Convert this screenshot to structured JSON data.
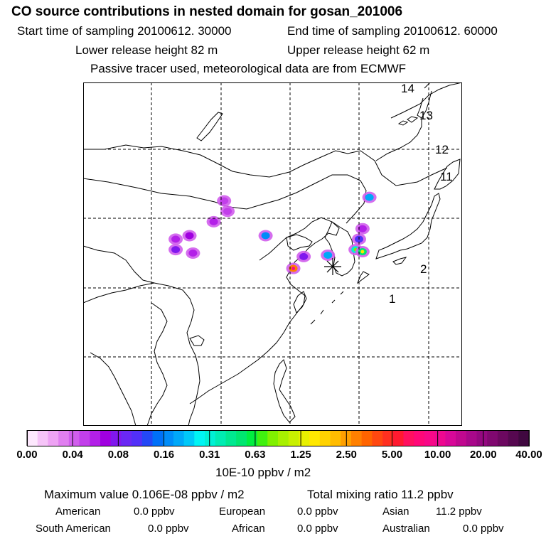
{
  "header": {
    "title": "CO  source contributions in nested domain for gosan_201006",
    "start_label": "Start time of sampling 20100612. 30000",
    "end_label": "End time of sampling 20100612. 60000",
    "lower_label": "Lower release height   82 m",
    "upper_label": "Upper release height   62 m",
    "tracer_note": "Passive tracer used, meteorological data are from ECMWF"
  },
  "chart_data": {
    "type": "heatmap",
    "title": "CO  source contributions in nested domain for gosan_201006",
    "map_numbers": [
      "14",
      "13",
      "12",
      "11",
      "2",
      "1"
    ],
    "release_site": "gosan",
    "hotspots": [
      {
        "lon": 120.5,
        "lat": 42.5,
        "value": 0.05
      },
      {
        "lon": 121.0,
        "lat": 41.0,
        "value": 0.05
      },
      {
        "lon": 119.0,
        "lat": 39.5,
        "value": 0.06
      },
      {
        "lon": 113.5,
        "lat": 37.0,
        "value": 0.06
      },
      {
        "lon": 115.5,
        "lat": 37.5,
        "value": 0.07
      },
      {
        "lon": 113.5,
        "lat": 35.5,
        "value": 0.08
      },
      {
        "lon": 116.0,
        "lat": 35.0,
        "value": 0.06
      },
      {
        "lon": 126.5,
        "lat": 37.5,
        "value": 0.16
      },
      {
        "lon": 132.0,
        "lat": 34.5,
        "value": 0.08
      },
      {
        "lon": 135.5,
        "lat": 34.7,
        "value": 0.2
      },
      {
        "lon": 139.5,
        "lat": 35.5,
        "value": 0.3
      },
      {
        "lon": 140.5,
        "lat": 35.2,
        "value": 0.5
      },
      {
        "lon": 140.0,
        "lat": 37.0,
        "value": 0.12
      },
      {
        "lon": 140.5,
        "lat": 38.5,
        "value": 0.06
      },
      {
        "lon": 141.5,
        "lat": 43.0,
        "value": 0.2
      },
      {
        "lon": 130.5,
        "lat": 32.8,
        "value": 3.0
      }
    ],
    "colorbar": {
      "tick_labels": [
        "0.00",
        "0.04",
        "0.08",
        "0.16",
        "0.31",
        "0.63",
        "1.25",
        "2.50",
        "5.00",
        "10.00",
        "20.00",
        "40.00"
      ],
      "colors": [
        "#fde8fd",
        "#f6c4f8",
        "#eea3f4",
        "#e07ff0",
        "#d05eec",
        "#c23fea",
        "#b320e8",
        "#a000e0",
        "#8018ee",
        "#6a28f4",
        "#5230f8",
        "#2448f6",
        "#0070f8",
        "#008cf8",
        "#00a8f8",
        "#00c8f8",
        "#00f4f4",
        "#00f0d4",
        "#00ecb2",
        "#00e890",
        "#00e670",
        "#00ee40",
        "#40f010",
        "#80f000",
        "#a8f000",
        "#c8f000",
        "#e8f000",
        "#ffe800",
        "#ffd200",
        "#ffbc00",
        "#ffa000",
        "#ff8000",
        "#ff6400",
        "#ff4810",
        "#ff3020",
        "#ff1a30",
        "#ff1060",
        "#ff0878",
        "#f80888",
        "#ee0890",
        "#d80898",
        "#c0088f",
        "#a8088a",
        "#940880",
        "#800870",
        "#6c0860",
        "#560850",
        "#400840"
      ],
      "unit_label": "10E-10 ppbv / m2"
    }
  },
  "footer": {
    "max_label": "Maximum value  0.106E-08 ppbv / m2",
    "total_label": "Total mixing ratio       11.2 ppbv",
    "american_label": "American",
    "american_val": "0.0 ppbv",
    "european_label": "European",
    "european_val": "0.0 ppbv",
    "asian_label": "Asian",
    "asian_val": "11.2 ppbv",
    "south_american_label": "South American",
    "south_american_val": "0.0 ppbv",
    "african_label": "African",
    "african_val": "0.0 ppbv",
    "australian_label": "Australian",
    "australian_val": "0.0 ppbv"
  }
}
